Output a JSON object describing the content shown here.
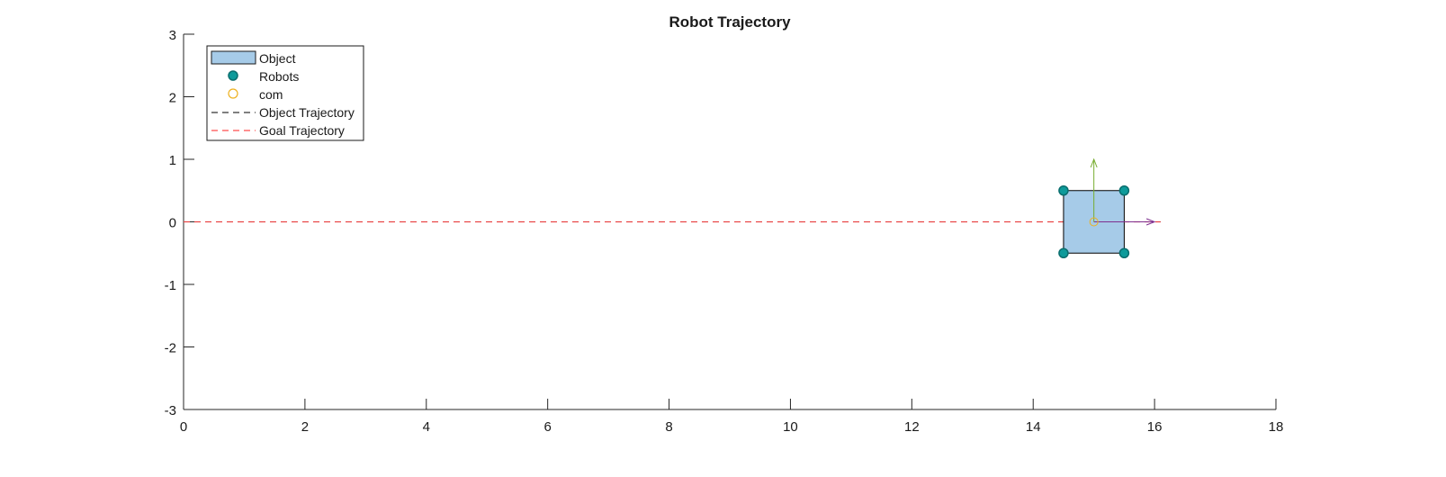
{
  "chart_data": {
    "type": "scatter",
    "title": "Robot Trajectory",
    "xlabel": "",
    "ylabel": "",
    "xlim": [
      0,
      18
    ],
    "ylim": [
      -3,
      3
    ],
    "xticks": [
      0,
      2,
      4,
      6,
      8,
      10,
      12,
      14,
      16,
      18
    ],
    "yticks": [
      -3,
      -2,
      -1,
      0,
      1,
      2,
      3
    ],
    "grid": false,
    "legend_position": "top-left",
    "legend": [
      {
        "label": "Object",
        "kind": "patch"
      },
      {
        "label": "Robots",
        "kind": "marker"
      },
      {
        "label": "com",
        "kind": "open-marker"
      },
      {
        "label": "Object Trajectory",
        "kind": "dashed-line"
      },
      {
        "label": "Goal Trajectory",
        "kind": "dashed-line"
      }
    ],
    "object": {
      "corners": [
        [
          14.5,
          -0.5
        ],
        [
          15.5,
          -0.5
        ],
        [
          15.5,
          0.5
        ],
        [
          14.5,
          0.5
        ]
      ],
      "fill": "#a6cbe8",
      "edge": "#000000"
    },
    "robots": {
      "points": [
        [
          14.5,
          0.5
        ],
        [
          15.5,
          0.5
        ],
        [
          14.5,
          -0.5
        ],
        [
          15.5,
          -0.5
        ]
      ],
      "color": "#0d9a9a",
      "edge": "#0a6e6e"
    },
    "com": {
      "point": [
        15.0,
        0.0
      ],
      "color": "#edb120"
    },
    "object_trajectory": {
      "x": [
        0,
        16.1
      ],
      "y": [
        0,
        0
      ],
      "color": "#000000"
    },
    "goal_trajectory": {
      "x": [
        0,
        16.1
      ],
      "y": [
        0,
        0
      ],
      "color": "#ff4d4d"
    },
    "arrows": [
      {
        "name": "heading-x",
        "from": [
          15.0,
          0.0
        ],
        "to": [
          16.0,
          0.0
        ],
        "color": "#7e2f8e"
      },
      {
        "name": "heading-y",
        "from": [
          15.0,
          0.0
        ],
        "to": [
          15.0,
          1.0
        ],
        "color": "#77ac30"
      }
    ]
  }
}
